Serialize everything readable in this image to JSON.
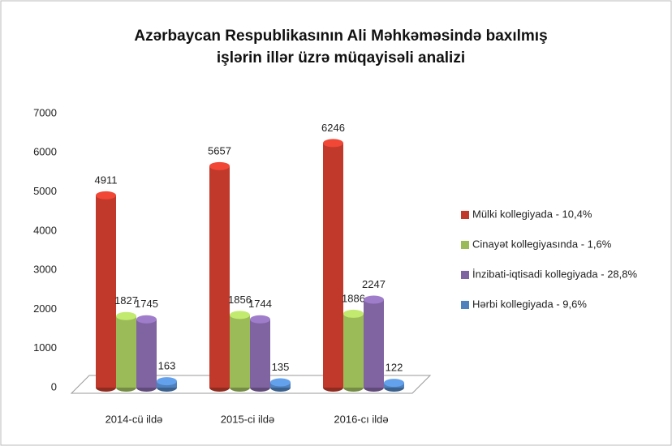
{
  "chart_data": {
    "type": "bar",
    "title": [
      "Azərbaycan Respublikasının Ali Məhkəməsində baxılmış",
      "işlərin illər üzrə müqayisəli analizi"
    ],
    "categories": [
      "2014-cü ildə",
      "2015-ci ildə",
      "2016-cı ildə"
    ],
    "series": [
      {
        "name": "Mülki kollegiyada - 10,4%",
        "color": "#c0392b",
        "values": [
          4911,
          5657,
          6246
        ]
      },
      {
        "name": "Cinayət kollegiyasında - 1,6%",
        "color": "#9bbb59",
        "values": [
          1827,
          1856,
          1886
        ]
      },
      {
        "name": "İnzibati-iqtisadi kollegiyada - 28,8%",
        "color": "#8064a2",
        "values": [
          1745,
          1744,
          2247
        ]
      },
      {
        "name": "Hərbi kollegiyada - 9,6%",
        "color": "#4f81bd",
        "values": [
          163,
          135,
          122
        ]
      }
    ],
    "ylim": [
      0,
      7000
    ],
    "yticks": [
      0,
      1000,
      2000,
      3000,
      4000,
      5000,
      6000,
      7000
    ],
    "legend": "right"
  }
}
